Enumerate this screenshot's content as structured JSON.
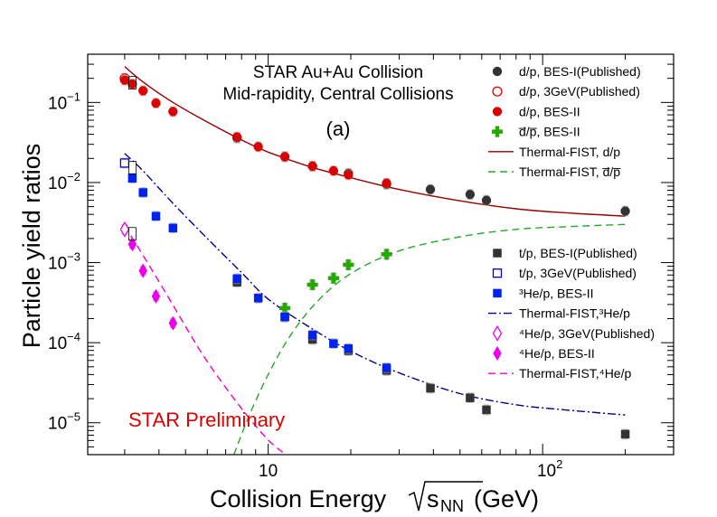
{
  "chart_data": {
    "type": "scatter",
    "title_lines": [
      "STAR Au+Au Collision",
      "Mid-rapidity, Central Collisions",
      "(a)"
    ],
    "preliminary": "STAR Preliminary",
    "xlabel": "Collision Energy",
    "xlabel_sqrt": "s",
    "xlabel_sub": "NN",
    "xlabel_unit": " (GeV)",
    "ylabel": "Particle yield ratios",
    "xscale": "log",
    "yscale": "log",
    "xlim": [
      2.2,
      300
    ],
    "ylim": [
      4e-06,
      0.4
    ],
    "xticks": [
      {
        "value": 10,
        "base": "10",
        "exp": ""
      },
      {
        "value": 100,
        "base": "10",
        "exp": "2"
      }
    ],
    "yticks": [
      {
        "value": 1e-05,
        "base": "10",
        "exp": "−5"
      },
      {
        "value": 0.0001,
        "base": "10",
        "exp": "−4"
      },
      {
        "value": 0.001,
        "base": "10",
        "exp": "−3"
      },
      {
        "value": 0.01,
        "base": "10",
        "exp": "−2"
      },
      {
        "value": 0.1,
        "base": "10",
        "exp": "−1"
      }
    ],
    "series": [
      {
        "name": "d/p, BES-I(Published)",
        "marker": "circle",
        "filled": true,
        "color": "#333333",
        "x": [
          7.7,
          11.5,
          14.5,
          19.6,
          27,
          39,
          54.4,
          62.4,
          200
        ],
        "y": [
          0.036,
          0.021,
          0.016,
          0.013,
          0.0095,
          0.0082,
          0.0071,
          0.006,
          0.0044
        ]
      },
      {
        "name": "d/p, 3GeV(Published)",
        "marker": "circle",
        "filled": false,
        "color": "#dd0000",
        "x": [
          3.0
        ],
        "y": [
          0.2
        ]
      },
      {
        "name": "d/p, BES-II",
        "marker": "circle",
        "filled": true,
        "color": "#dd0000",
        "x": [
          3.0,
          3.2,
          3.5,
          3.9,
          4.5,
          7.7,
          9.2,
          11.5,
          14.5,
          17.3,
          19.6,
          27
        ],
        "y": [
          0.19,
          0.17,
          0.14,
          0.098,
          0.077,
          0.037,
          0.028,
          0.021,
          0.016,
          0.014,
          0.0125,
          0.0098
        ]
      },
      {
        "name": "d̅/p̅, BES-II",
        "marker": "cross",
        "filled": true,
        "color": "#22aa00",
        "x": [
          11.5,
          14.5,
          17.3,
          19.6,
          27
        ],
        "y": [
          0.00027,
          0.00053,
          0.00064,
          0.00094,
          0.00127
        ]
      },
      {
        "name": "t/p, BES-I(Published)",
        "marker": "square",
        "filled": true,
        "color": "#333333",
        "x": [
          7.7,
          11.5,
          14.5,
          19.6,
          27,
          39,
          54.4,
          62.4,
          200
        ],
        "y": [
          0.00057,
          0.00021,
          0.00011,
          7.95e-05,
          4.5e-05,
          2.7e-05,
          2.05e-05,
          1.45e-05,
          7.2e-06
        ]
      },
      {
        "name": "t/p, 3GeV(Published)",
        "marker": "square",
        "filled": false,
        "color": "#0000cc",
        "x": [
          3.0
        ],
        "y": [
          0.0175
        ]
      },
      {
        "name": "³He/p, BES-II",
        "marker": "square",
        "filled": true,
        "color": "#0022ee",
        "x": [
          3.2,
          3.5,
          3.9,
          4.5,
          7.7,
          9.2,
          11.5,
          14.5,
          17.3,
          19.6,
          27
        ],
        "y": [
          0.0113,
          0.0075,
          0.0038,
          0.0027,
          0.00063,
          0.00036,
          0.00021,
          0.000125,
          9.75e-05,
          8.45e-05,
          4.85e-05
        ]
      },
      {
        "name": "⁴He/p, 3GeV(Published)",
        "marker": "diamond",
        "filled": false,
        "color": "#ee00ee",
        "x": [
          3.0
        ],
        "y": [
          0.0026
        ]
      },
      {
        "name": "⁴He/p, BES-II",
        "marker": "diamond",
        "filled": true,
        "color": "#ee00ee",
        "x": [
          3.2,
          3.5,
          3.9,
          4.5
        ],
        "y": [
          0.0017,
          0.00079,
          0.00038,
          0.000175
        ]
      }
    ],
    "curves": [
      {
        "name": "Thermal-FIST, d/p",
        "style": "solid",
        "color": "#990000",
        "x": [
          3.0,
          3.5,
          4.5,
          6,
          8,
          10,
          14,
          20,
          30,
          50,
          80,
          120,
          200
        ],
        "y": [
          0.28,
          0.18,
          0.1,
          0.057,
          0.034,
          0.024,
          0.016,
          0.0115,
          0.0082,
          0.0059,
          0.0047,
          0.0042,
          0.0038
        ]
      },
      {
        "name": "Thermal-FIST, d̅/p̅",
        "style": "dashed",
        "color": "#22aa22",
        "x": [
          7.5,
          8.5,
          10,
          12,
          15,
          20,
          30,
          50,
          80,
          120,
          200
        ],
        "y": [
          4e-06,
          1.2e-05,
          4e-05,
          0.00012,
          0.00032,
          0.00073,
          0.0014,
          0.0021,
          0.0026,
          0.0028,
          0.003
        ]
      },
      {
        "name": "Thermal-FIST,³He/p",
        "style": "dashdot",
        "color": "#000088",
        "x": [
          3.0,
          3.5,
          4.5,
          6,
          8,
          10,
          14,
          20,
          30,
          50,
          80,
          120,
          200
        ],
        "y": [
          0.023,
          0.014,
          0.0055,
          0.002,
          0.00075,
          0.00035,
          0.00016,
          7.82e-05,
          4.2e-05,
          2.31e-05,
          1.68e-05,
          1.45e-05,
          1.25e-05
        ]
      },
      {
        "name": "Thermal-FIST,⁴He/p",
        "style": "dashed",
        "color": "#ee00cc",
        "x": [
          3.0,
          4,
          5,
          6,
          8,
          10,
          11.5
        ],
        "y": [
          0.0029,
          0.00058,
          0.00016,
          5.8e-05,
          1.5e-05,
          6.1e-06,
          4.1e-06
        ]
      }
    ],
    "legend_upper": [
      {
        "label": "d/p, BES-I(Published)",
        "ref": "s0"
      },
      {
        "label": "d/p, 3GeV(Published)",
        "ref": "s1"
      },
      {
        "label": "d/p, BES-II",
        "ref": "s2"
      },
      {
        "label": "d̅/p̅, BES-II",
        "ref": "s3"
      },
      {
        "label": "Thermal-FIST, d/p",
        "ref": "c0"
      },
      {
        "label": "Thermal-FIST,   d̅/p̅",
        "ref": "c1"
      }
    ],
    "legend_lower": [
      {
        "label": "t/p, BES-I(Published)",
        "ref": "s4"
      },
      {
        "label": "t/p, 3GeV(Published)",
        "ref": "s5"
      },
      {
        "label": "³He/p, BES-II",
        "ref": "s6"
      },
      {
        "label": "Thermal-FIST,³He/p",
        "ref": "c2"
      },
      {
        "label": "⁴He/p, 3GeV(Published)",
        "ref": "s7"
      },
      {
        "label": "⁴He/p, BES-II",
        "ref": "s8"
      },
      {
        "label": "Thermal-FIST,⁴He/p",
        "ref": "c3"
      }
    ]
  }
}
